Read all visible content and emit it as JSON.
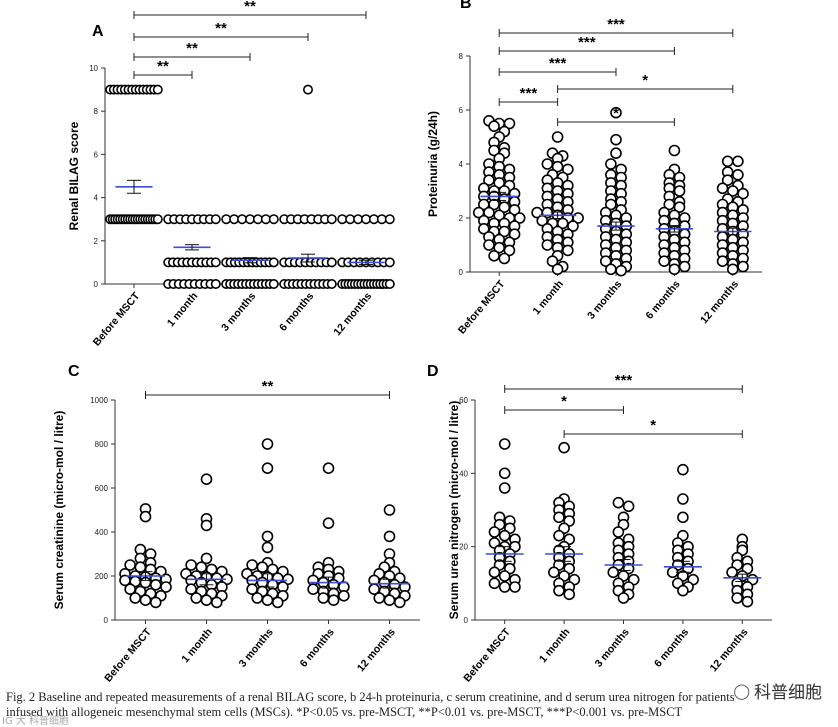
{
  "chart_data": [
    {
      "type": "scatter",
      "panel": "A",
      "ylabel": "Renal BILAG score",
      "xlabel": "",
      "ylim": [
        0,
        10
      ],
      "yticks": [
        0,
        2,
        4,
        6,
        8,
        10
      ],
      "categories": [
        "Before MSCT",
        "1 month",
        "3 months",
        "6 months",
        "12 months"
      ],
      "points": [
        [
          9,
          9,
          9,
          9,
          9,
          9,
          9,
          9,
          9,
          9,
          9,
          9,
          9,
          9,
          3,
          3,
          3,
          3,
          3,
          3,
          3,
          3,
          3,
          3,
          3,
          3,
          3,
          3,
          3,
          3,
          3,
          3,
          3,
          3
        ],
        [
          3,
          3,
          3,
          3,
          3,
          3,
          3,
          3,
          3,
          1,
          1,
          1,
          1,
          1,
          1,
          1,
          1,
          1,
          1,
          1,
          0,
          0,
          0,
          0,
          0,
          0,
          0,
          0,
          0,
          0
        ],
        [
          3,
          3,
          3,
          3,
          3,
          3,
          3,
          1,
          1,
          1,
          1,
          1,
          1,
          1,
          1,
          1,
          1,
          1,
          1,
          0,
          0,
          0,
          0,
          0,
          0,
          0,
          0,
          0,
          0,
          0,
          0,
          0
        ],
        [
          9,
          3,
          3,
          3,
          3,
          3,
          3,
          3,
          3,
          1,
          1,
          1,
          1,
          1,
          1,
          1,
          1,
          1,
          1,
          0,
          0,
          0,
          0,
          0,
          0,
          0,
          0,
          0,
          0,
          0,
          0
        ],
        [
          3,
          3,
          3,
          3,
          3,
          3,
          3,
          1,
          1,
          1,
          1,
          1,
          1,
          1,
          1,
          1,
          0,
          0,
          0,
          0,
          0,
          0,
          0,
          0,
          0,
          0,
          0,
          0,
          0,
          0,
          0,
          0
        ]
      ],
      "means": [
        4.5,
        1.7,
        1.1,
        1.2,
        1.0
      ],
      "sem": [
        0.3,
        0.12,
        0.12,
        0.18,
        0.1
      ],
      "comparisons": [
        {
          "from": 0,
          "to": 1,
          "label": "**"
        },
        {
          "from": 0,
          "to": 2,
          "label": "**"
        },
        {
          "from": 0,
          "to": 3,
          "label": "**"
        },
        {
          "from": 0,
          "to": 4,
          "label": "**"
        }
      ]
    },
    {
      "type": "scatter",
      "panel": "B",
      "ylabel": "Proteinuria (g/24h)",
      "xlabel": "",
      "ylim": [
        0,
        8
      ],
      "yticks": [
        0,
        2,
        4,
        6,
        8
      ],
      "categories": [
        "Before MSCT",
        "1 month",
        "3 months",
        "6 months",
        "12 months"
      ],
      "points": [
        [
          5.6,
          5.5,
          5.5,
          5.4,
          5.2,
          5.0,
          4.8,
          4.6,
          4.5,
          4.4,
          4.2,
          4.0,
          3.9,
          3.8,
          3.7,
          3.6,
          3.5,
          3.4,
          3.3,
          3.2,
          3.1,
          3.0,
          3.0,
          2.9,
          2.8,
          2.8,
          2.7,
          2.6,
          2.5,
          2.5,
          2.4,
          2.3,
          2.2,
          2.2,
          2.1,
          2.0,
          2.0,
          1.9,
          1.8,
          1.8,
          1.7,
          1.6,
          1.5,
          1.5,
          1.4,
          1.3,
          1.2,
          1.1,
          1.0,
          0.9,
          0.8,
          0.6,
          0.5
        ],
        [
          5.0,
          4.4,
          4.3,
          4.2,
          4.0,
          3.9,
          3.8,
          3.6,
          3.5,
          3.4,
          3.3,
          3.2,
          3.1,
          3.0,
          2.9,
          2.8,
          2.7,
          2.6,
          2.5,
          2.4,
          2.3,
          2.2,
          2.2,
          2.1,
          2.0,
          2.0,
          1.9,
          1.8,
          1.8,
          1.7,
          1.6,
          1.5,
          1.4,
          1.3,
          1.2,
          1.1,
          1.0,
          0.9,
          0.8,
          0.6,
          0.4,
          0.2,
          0.1
        ],
        [
          5.9,
          4.9,
          4.4,
          4.0,
          3.8,
          3.6,
          3.5,
          3.3,
          3.2,
          3.0,
          2.9,
          2.7,
          2.6,
          2.5,
          2.3,
          2.2,
          2.1,
          2.0,
          1.9,
          1.8,
          1.7,
          1.6,
          1.5,
          1.4,
          1.3,
          1.2,
          1.1,
          1.0,
          0.9,
          0.8,
          0.7,
          0.6,
          0.5,
          0.4,
          0.3,
          0.2,
          0.1,
          0.05
        ],
        [
          4.5,
          3.8,
          3.6,
          3.5,
          3.3,
          3.2,
          3.1,
          3.0,
          2.8,
          2.6,
          2.5,
          2.4,
          2.2,
          2.1,
          2.0,
          1.9,
          1.8,
          1.7,
          1.6,
          1.5,
          1.4,
          1.3,
          1.2,
          1.1,
          1.0,
          0.9,
          0.8,
          0.7,
          0.6,
          0.5,
          0.4,
          0.3,
          0.2,
          0.1
        ],
        [
          4.1,
          4.1,
          3.7,
          3.6,
          3.4,
          3.2,
          3.1,
          3.0,
          2.9,
          2.7,
          2.6,
          2.5,
          2.4,
          2.3,
          2.2,
          2.1,
          2.0,
          1.9,
          1.8,
          1.7,
          1.6,
          1.5,
          1.4,
          1.3,
          1.2,
          1.1,
          1.0,
          0.9,
          0.8,
          0.7,
          0.6,
          0.5,
          0.4,
          0.3,
          0.2,
          0.1
        ]
      ],
      "means": [
        2.8,
        2.1,
        1.7,
        1.6,
        1.5
      ],
      "sem": [
        0.15,
        0.12,
        0.15,
        0.12,
        0.12
      ],
      "comparisons": [
        {
          "from": 0,
          "to": 1,
          "label": "***"
        },
        {
          "from": 0,
          "to": 2,
          "label": "***"
        },
        {
          "from": 0,
          "to": 3,
          "label": "***"
        },
        {
          "from": 0,
          "to": 4,
          "label": "***"
        },
        {
          "from": 1,
          "to": 3,
          "label": "*"
        },
        {
          "from": 1,
          "to": 4,
          "label": "*"
        }
      ]
    },
    {
      "type": "scatter",
      "panel": "C",
      "ylabel": "Serum creatinine (micro-mol / litre)",
      "xlabel": "",
      "ylim": [
        0,
        1000
      ],
      "yticks": [
        0,
        200,
        400,
        600,
        800,
        1000
      ],
      "categories": [
        "Before MSCT",
        "1 month",
        "3 months",
        "6 months",
        "12 months"
      ],
      "points": [
        [
          505,
          470,
          320,
          300,
          280,
          260,
          250,
          240,
          230,
          220,
          210,
          200,
          195,
          190,
          185,
          180,
          175,
          170,
          160,
          150,
          140,
          130,
          120,
          110,
          100,
          90,
          80
        ],
        [
          640,
          460,
          430,
          280,
          250,
          240,
          230,
          220,
          210,
          200,
          195,
          190,
          185,
          180,
          170,
          160,
          150,
          140,
          130,
          120,
          110,
          100,
          90,
          80
        ],
        [
          800,
          690,
          380,
          330,
          260,
          250,
          240,
          230,
          220,
          210,
          200,
          195,
          190,
          185,
          180,
          170,
          160,
          150,
          140,
          130,
          120,
          110,
          100,
          90,
          80
        ],
        [
          690,
          440,
          260,
          240,
          230,
          220,
          210,
          200,
          190,
          180,
          170,
          160,
          150,
          140,
          130,
          120,
          110,
          100,
          90
        ],
        [
          500,
          380,
          300,
          260,
          240,
          220,
          210,
          200,
          190,
          180,
          170,
          160,
          150,
          140,
          130,
          120,
          110,
          100,
          90,
          80
        ]
      ],
      "means": [
        200,
        185,
        180,
        170,
        165
      ],
      "sem": [
        20,
        25,
        30,
        25,
        20
      ],
      "comparisons": [
        {
          "from": 0,
          "to": 4,
          "label": "**"
        }
      ]
    },
    {
      "type": "scatter",
      "panel": "D",
      "ylabel": "Serum urea nitrogen (micro-mol / litre)",
      "xlabel": "",
      "ylim": [
        0,
        60
      ],
      "yticks": [
        0,
        20,
        40,
        60
      ],
      "categories": [
        "Before MSCT",
        "1 month",
        "3 months",
        "6 months",
        "12 months"
      ],
      "points": [
        [
          48,
          40,
          36,
          28,
          27,
          26,
          25,
          24,
          23,
          22,
          21,
          20,
          20,
          19,
          18,
          17,
          16,
          15,
          14,
          13,
          12,
          11,
          10,
          9,
          9
        ],
        [
          47,
          33,
          32,
          31,
          30,
          29,
          28,
          27,
          25,
          23,
          22,
          20,
          19,
          18,
          17,
          16,
          15,
          14,
          13,
          12,
          11,
          10,
          9,
          8,
          7
        ],
        [
          32,
          31,
          28,
          26,
          24,
          22,
          21,
          20,
          19,
          18,
          17,
          16,
          15,
          14,
          13,
          12,
          11,
          10,
          9,
          8,
          7,
          6
        ],
        [
          41,
          33,
          28,
          23,
          21,
          20,
          19,
          18,
          17,
          16,
          15,
          14,
          13,
          12,
          11,
          10,
          9,
          8
        ],
        [
          22,
          20,
          19,
          17,
          16,
          15,
          14,
          13,
          12,
          11,
          10,
          9,
          8,
          7,
          6,
          5
        ]
      ],
      "means": [
        18,
        18,
        15,
        14.5,
        11.5
      ],
      "sem": [
        2,
        2,
        1.5,
        1.5,
        1
      ],
      "comparisons": [
        {
          "from": 0,
          "to": 2,
          "label": "*"
        },
        {
          "from": 0,
          "to": 4,
          "label": "***"
        },
        {
          "from": 1,
          "to": 4,
          "label": "*"
        }
      ]
    }
  ],
  "caption": {
    "line1": "Fig. 2  Baseline and repeated measurements of a renal BILAG score, b 24-h proteinuria, c serum creatinine, and d serum urea nitrogen for patients",
    "line2": "infused with allogeneic mesenchymal stem cells (MSCs). *P<0.05 vs. pre-MSCT, **P<0.01 vs. pre-MSCT, ***P<0.001 vs. pre-MSCT"
  },
  "watermark": {
    "text": "科普细胞",
    "left_text": "IG 大 科普细胞"
  },
  "colors": {
    "mean_line": "#3b4fd0",
    "points": "#000000",
    "axis": "#333333"
  }
}
